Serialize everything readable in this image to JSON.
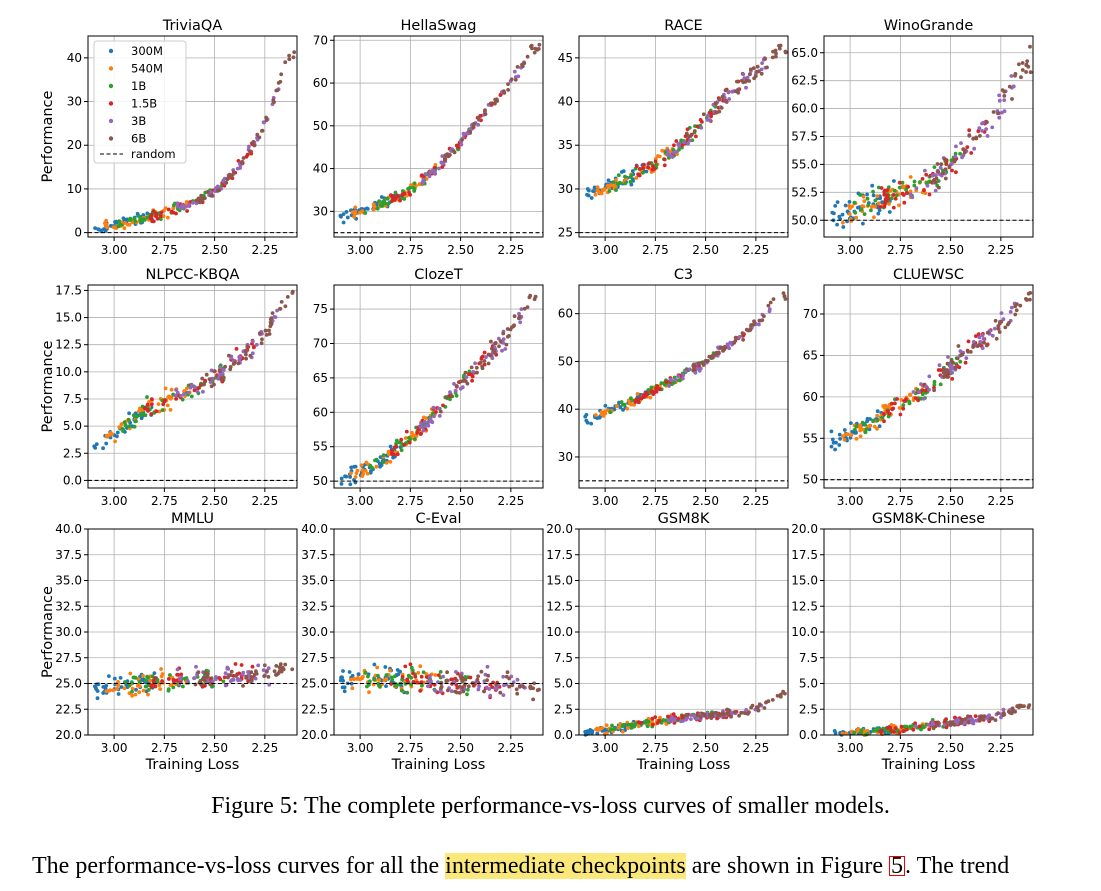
{
  "figure": {
    "caption": "Figure 5: The complete performance-vs-loss curves of smaller models.",
    "body_text_before": "The performance-vs-loss curves for all the ",
    "body_text_highlight": "intermediate checkpoints",
    "body_text_middle": " are shown in Figure ",
    "body_text_ref": "5",
    "body_text_after": ". The trend"
  },
  "colors": {
    "300M": "#1f77b4",
    "540M": "#ff7f0e",
    "1B": "#2ca02c",
    "1.5B": "#d62728",
    "3B": "#9467bd",
    "6B": "#8c564b"
  },
  "legend": {
    "entries": [
      "300M",
      "540M",
      "1B",
      "1.5B",
      "3B",
      "6B"
    ],
    "random_label": "random",
    "placement": "upper-left (TriviaQA panel)"
  },
  "chart_data": [
    {
      "type": "scatter",
      "title": "TriviaQA",
      "ylabel": "Performance",
      "xlabel": "",
      "x_reversed": true,
      "xlim": [
        3.13,
        2.09
      ],
      "ylim": [
        -1,
        45
      ],
      "xticks": [
        "3.00",
        "2.75",
        "2.50",
        "2.25"
      ],
      "yticks": [
        "0",
        "10",
        "20",
        "30",
        "40"
      ],
      "random_baseline": 0,
      "trend": [
        [
          3.08,
          1
        ],
        [
          2.9,
          2.8
        ],
        [
          2.75,
          4.5
        ],
        [
          2.62,
          6.5
        ],
        [
          2.5,
          9.5
        ],
        [
          2.42,
          13
        ],
        [
          2.35,
          17
        ],
        [
          2.28,
          22
        ],
        [
          2.22,
          28
        ],
        [
          2.18,
          34
        ],
        [
          2.14,
          41
        ]
      ],
      "spread": 1.2
    },
    {
      "type": "scatter",
      "title": "HellaSwag",
      "ylabel": "",
      "xlabel": "",
      "x_reversed": true,
      "xlim": [
        3.13,
        2.09
      ],
      "ylim": [
        24,
        71
      ],
      "xticks": [
        "3.00",
        "2.75",
        "2.50",
        "2.25"
      ],
      "yticks": [
        "30",
        "40",
        "50",
        "60",
        "70"
      ],
      "random_baseline": 25,
      "trend": [
        [
          3.08,
          29
        ],
        [
          2.9,
          31.5
        ],
        [
          2.75,
          35
        ],
        [
          2.62,
          40
        ],
        [
          2.5,
          46
        ],
        [
          2.4,
          52
        ],
        [
          2.3,
          57
        ],
        [
          2.22,
          62
        ],
        [
          2.14,
          68
        ]
      ],
      "spread": 1.3
    },
    {
      "type": "scatter",
      "title": "RACE",
      "ylabel": "",
      "xlabel": "",
      "x_reversed": true,
      "xlim": [
        3.13,
        2.09
      ],
      "ylim": [
        24.5,
        47.5
      ],
      "xticks": [
        "3.00",
        "2.75",
        "2.50",
        "2.25"
      ],
      "yticks": [
        "25",
        "30",
        "35",
        "40",
        "45"
      ],
      "random_baseline": 25,
      "trend": [
        [
          3.08,
          29.5
        ],
        [
          2.9,
          31
        ],
        [
          2.75,
          33
        ],
        [
          2.62,
          35
        ],
        [
          2.5,
          38
        ],
        [
          2.42,
          40
        ],
        [
          2.32,
          42
        ],
        [
          2.22,
          44
        ],
        [
          2.14,
          46
        ]
      ],
      "spread": 0.9
    },
    {
      "type": "scatter",
      "title": "WinoGrande",
      "ylabel": "",
      "xlabel": "",
      "x_reversed": true,
      "xlim": [
        3.13,
        2.09
      ],
      "ylim": [
        48.5,
        66.5
      ],
      "xticks": [
        "3.00",
        "2.75",
        "2.50",
        "2.25"
      ],
      "yticks": [
        "50.0",
        "52.5",
        "55.0",
        "57.5",
        "60.0",
        "62.5",
        "65.0"
      ],
      "random_baseline": 50,
      "trend": [
        [
          3.08,
          50.5
        ],
        [
          2.9,
          51.5
        ],
        [
          2.75,
          52.5
        ],
        [
          2.62,
          53.5
        ],
        [
          2.5,
          55
        ],
        [
          2.42,
          56.5
        ],
        [
          2.32,
          58.5
        ],
        [
          2.22,
          61
        ],
        [
          2.14,
          64
        ]
      ],
      "spread": 1.4
    },
    {
      "type": "scatter",
      "title": "NLPCC-KBQA",
      "ylabel": "Performance",
      "xlabel": "",
      "x_reversed": true,
      "xlim": [
        3.13,
        2.09
      ],
      "ylim": [
        -0.7,
        18
      ],
      "xticks": [
        "3.00",
        "2.75",
        "2.50",
        "2.25"
      ],
      "yticks": [
        "0.0",
        "2.5",
        "5.0",
        "7.5",
        "10.0",
        "12.5",
        "15.0",
        "17.5"
      ],
      "random_baseline": 0,
      "trend": [
        [
          3.08,
          3
        ],
        [
          2.95,
          5
        ],
        [
          2.85,
          6.5
        ],
        [
          2.75,
          7.3
        ],
        [
          2.62,
          8.2
        ],
        [
          2.5,
          9.5
        ],
        [
          2.4,
          11
        ],
        [
          2.3,
          12.5
        ],
        [
          2.22,
          14.5
        ],
        [
          2.14,
          17
        ]
      ],
      "spread": 0.8
    },
    {
      "type": "scatter",
      "title": "ClozeT",
      "ylabel": "",
      "xlabel": "",
      "x_reversed": true,
      "xlim": [
        3.13,
        2.09
      ],
      "ylim": [
        49,
        78.5
      ],
      "xticks": [
        "3.00",
        "2.75",
        "2.50",
        "2.25"
      ],
      "yticks": [
        "50",
        "55",
        "60",
        "65",
        "70",
        "75"
      ],
      "random_baseline": 50,
      "trend": [
        [
          3.08,
          50.5
        ],
        [
          2.9,
          53
        ],
        [
          2.75,
          56
        ],
        [
          2.62,
          60
        ],
        [
          2.5,
          64
        ],
        [
          2.4,
          67
        ],
        [
          2.3,
          70
        ],
        [
          2.22,
          73
        ],
        [
          2.14,
          77
        ]
      ],
      "spread": 1.3
    },
    {
      "type": "scatter",
      "title": "C3",
      "ylabel": "",
      "xlabel": "",
      "x_reversed": true,
      "xlim": [
        3.13,
        2.09
      ],
      "ylim": [
        23.5,
        66
      ],
      "xticks": [
        "3.00",
        "2.75",
        "2.50",
        "2.25"
      ],
      "yticks": [
        "30",
        "40",
        "50",
        "60"
      ],
      "random_baseline": 25,
      "trend": [
        [
          3.08,
          38
        ],
        [
          2.9,
          41
        ],
        [
          2.75,
          44
        ],
        [
          2.62,
          47
        ],
        [
          2.5,
          50
        ],
        [
          2.4,
          53
        ],
        [
          2.3,
          56
        ],
        [
          2.22,
          59
        ],
        [
          2.14,
          64
        ]
      ],
      "spread": 1.0
    },
    {
      "type": "scatter",
      "title": "CLUEWSC",
      "ylabel": "",
      "xlabel": "",
      "x_reversed": true,
      "xlim": [
        3.13,
        2.09
      ],
      "ylim": [
        49,
        73.5
      ],
      "xticks": [
        "3.00",
        "2.75",
        "2.50",
        "2.25"
      ],
      "yticks": [
        "50",
        "55",
        "60",
        "65",
        "70"
      ],
      "random_baseline": 50,
      "trend": [
        [
          3.08,
          54.5
        ],
        [
          2.9,
          57
        ],
        [
          2.75,
          59
        ],
        [
          2.62,
          61
        ],
        [
          2.5,
          63.5
        ],
        [
          2.4,
          66
        ],
        [
          2.3,
          67.5
        ],
        [
          2.22,
          69.5
        ],
        [
          2.14,
          72
        ]
      ],
      "spread": 1.2
    },
    {
      "type": "scatter",
      "title": "MMLU",
      "ylabel": "Performance",
      "xlabel": "Training Loss",
      "x_reversed": true,
      "xlim": [
        3.13,
        2.09
      ],
      "ylim": [
        20,
        40
      ],
      "xticks": [
        "3.00",
        "2.75",
        "2.50",
        "2.25"
      ],
      "yticks": [
        "20.0",
        "22.5",
        "25.0",
        "27.5",
        "30.0",
        "32.5",
        "35.0",
        "37.5",
        "40.0"
      ],
      "random_baseline": 25,
      "trend": [
        [
          3.08,
          24.5
        ],
        [
          2.75,
          25.3
        ],
        [
          2.5,
          25.5
        ],
        [
          2.25,
          26
        ],
        [
          2.14,
          26.5
        ]
      ],
      "spread": 1.1
    },
    {
      "type": "scatter",
      "title": "C-Eval",
      "ylabel": "",
      "xlabel": "Training Loss",
      "x_reversed": true,
      "xlim": [
        3.13,
        2.09
      ],
      "ylim": [
        20,
        40
      ],
      "xticks": [
        "3.00",
        "2.75",
        "2.50",
        "2.25"
      ],
      "yticks": [
        "20.0",
        "22.5",
        "25.0",
        "27.5",
        "30.0",
        "32.5",
        "35.0",
        "37.5",
        "40.0"
      ],
      "random_baseline": 25,
      "trend": [
        [
          3.08,
          25.5
        ],
        [
          2.75,
          25.3
        ],
        [
          2.5,
          25
        ],
        [
          2.25,
          24.8
        ],
        [
          2.14,
          24.5
        ]
      ],
      "spread": 1.2
    },
    {
      "type": "scatter",
      "title": "GSM8K",
      "ylabel": "",
      "xlabel": "Training Loss",
      "x_reversed": true,
      "xlim": [
        3.13,
        2.09
      ],
      "ylim": [
        0,
        20
      ],
      "xticks": [
        "3.00",
        "2.75",
        "2.50",
        "2.25"
      ],
      "yticks": [
        "0.0",
        "2.5",
        "5.0",
        "7.5",
        "10.0",
        "12.5",
        "15.0",
        "17.5",
        "20.0"
      ],
      "random_baseline": 0,
      "trend": [
        [
          3.08,
          0.3
        ],
        [
          2.9,
          0.8
        ],
        [
          2.75,
          1.4
        ],
        [
          2.5,
          1.9
        ],
        [
          2.3,
          2.2
        ],
        [
          2.2,
          3
        ],
        [
          2.14,
          4
        ]
      ],
      "spread": 0.4
    },
    {
      "type": "scatter",
      "title": "GSM8K-Chinese",
      "ylabel": "",
      "xlabel": "Training Loss",
      "x_reversed": true,
      "xlim": [
        3.13,
        2.09
      ],
      "ylim": [
        0,
        20
      ],
      "xticks": [
        "3.00",
        "2.75",
        "2.50",
        "2.25"
      ],
      "yticks": [
        "0.0",
        "2.5",
        "5.0",
        "7.5",
        "10.0",
        "12.5",
        "15.0",
        "17.5",
        "20.0"
      ],
      "random_baseline": 0,
      "trend": [
        [
          3.08,
          0.1
        ],
        [
          2.9,
          0.3
        ],
        [
          2.75,
          0.6
        ],
        [
          2.5,
          1.2
        ],
        [
          2.3,
          1.7
        ],
        [
          2.2,
          2.3
        ],
        [
          2.14,
          2.8
        ]
      ],
      "spread": 0.4
    }
  ]
}
